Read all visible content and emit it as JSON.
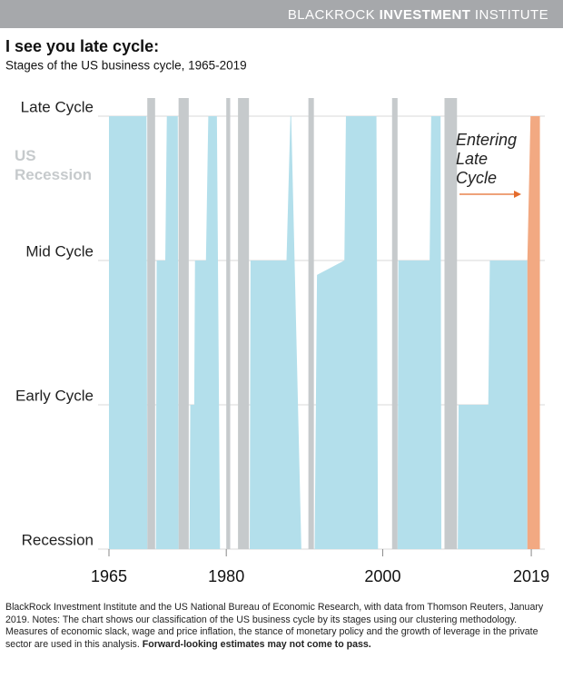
{
  "header": {
    "brand": "BLACKROCK",
    "brand_bold": "INVESTMENT",
    "brand_end": "INSTITUTE"
  },
  "chart_data": {
    "type": "area",
    "title": "I see you late cycle:",
    "subtitle": "Stages of the US business cycle, 1965-2019",
    "x": [
      1965,
      1969.8,
      1969.9,
      1971.0,
      1971.1,
      1972.2,
      1972.4,
      1973.8,
      1973.9,
      1975.3,
      1975.4,
      1975.9,
      1976.0,
      1977.4,
      1977.7,
      1978.8,
      1979.2,
      1983.0,
      1983.1,
      1987.7,
      1988.2,
      1988.3,
      1989.6,
      1991.3,
      1991.6,
      1995.1,
      1995.3,
      1999.2,
      1999.4,
      2001.9,
      2002.0,
      2006.0,
      2006.2,
      2007.4,
      2007.5,
      2009.6,
      2009.7,
      2013.5,
      2013.7,
      2018.5
    ],
    "values": [
      3,
      3,
      0,
      0,
      2,
      2,
      3,
      3,
      0,
      0,
      1,
      1,
      2,
      2,
      3,
      3,
      0,
      0,
      2,
      2,
      3,
      3,
      0,
      0,
      1.9,
      2,
      3,
      3,
      0,
      0,
      2,
      2,
      3,
      3,
      0,
      0,
      1,
      1,
      2,
      2
    ],
    "color": "#b3dfeb",
    "forecast": {
      "x": [
        2018.5,
        2018.9,
        2020.1
      ],
      "values": [
        2,
        3,
        3
      ],
      "color": "#f2a982"
    },
    "recessions": [
      [
        1969.9,
        1970.9
      ],
      [
        1973.9,
        1975.2
      ],
      [
        1980.0,
        1980.5
      ],
      [
        1981.5,
        1982.9
      ],
      [
        1990.5,
        1991.2
      ],
      [
        2001.2,
        2001.9
      ],
      [
        2007.9,
        2009.5
      ]
    ],
    "recession_color": "#c6cacc",
    "recession_label": [
      "US",
      "Recession"
    ],
    "annotation": [
      "Entering",
      "Late",
      "Cycle"
    ],
    "annotation_color": "#e46b2b",
    "xlim": [
      1965,
      2020.5
    ],
    "ylim": [
      0,
      3
    ],
    "xticks": [
      1965,
      1980,
      2000,
      2019
    ],
    "yticks": [
      {
        "value": 0,
        "label": "Recession"
      },
      {
        "value": 1,
        "label": "Early Cycle"
      },
      {
        "value": 2,
        "label": "Mid Cycle"
      },
      {
        "value": 3,
        "label": "Late Cycle"
      }
    ],
    "grid": true
  },
  "source": "BlackRock Investment Institute and the US National Bureau of Economic Research, with data from Thomson Reuters, January 2019. Notes: The chart shows our classification of the US business cycle by its stages using our clustering methodology. Measures of economic slack, wage and price inflation, the stance of monetary policy and the growth of leverage in the private sector are used in this analysis.",
  "source_bold": "Forward-looking estimates may not come to pass."
}
